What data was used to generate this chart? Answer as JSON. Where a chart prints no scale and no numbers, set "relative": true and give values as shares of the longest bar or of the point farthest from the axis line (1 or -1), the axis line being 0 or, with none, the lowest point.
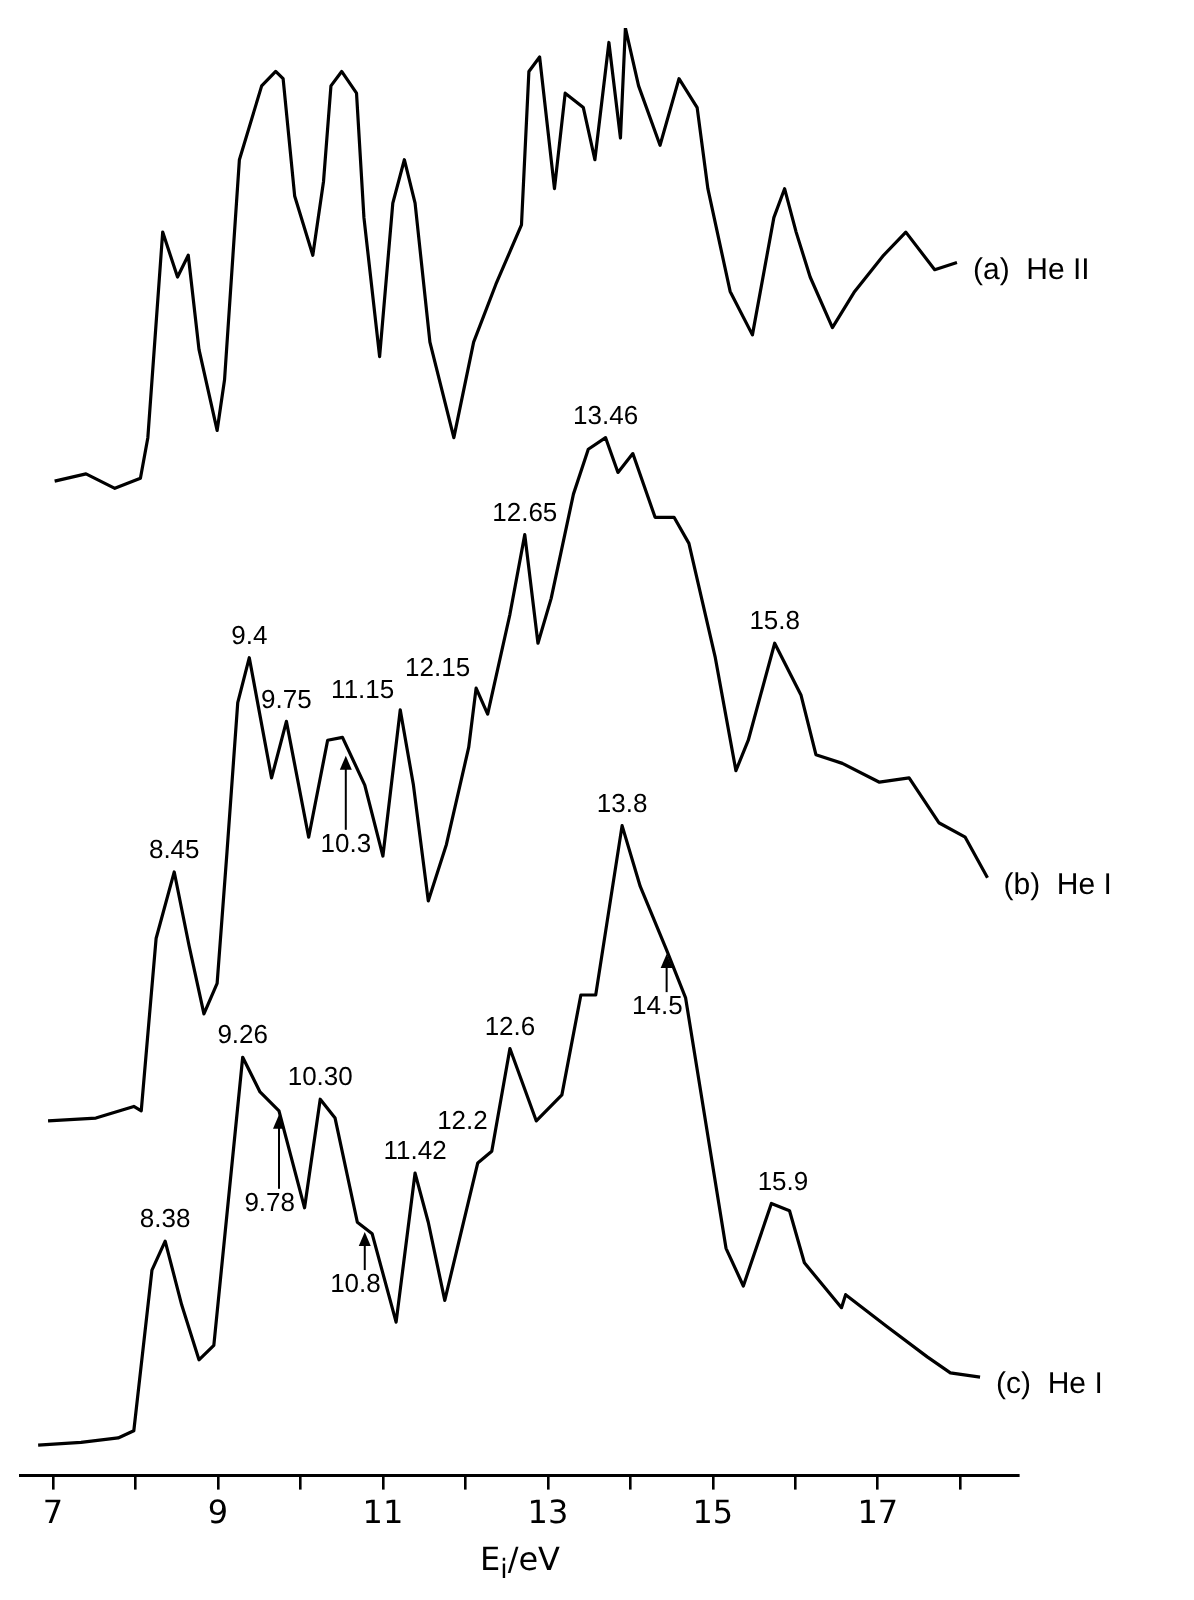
{
  "chart_data": {
    "type": "line",
    "relative": true,
    "xlabel": "E$_{i}$/eV",
    "xlim": [
      6.6,
      18.7
    ],
    "xticks": [
      7,
      {
        "value": 8,
        "label": null
      },
      9,
      {
        "value": 10,
        "label": null
      },
      11,
      {
        "value": 12,
        "label": null
      },
      13,
      {
        "value": 14,
        "label": null
      },
      15,
      {
        "value": 16,
        "label": null
      },
      17,
      {
        "value": 18,
        "label": null
      }
    ],
    "grid": false,
    "legend": false,
    "marker": "none",
    "line_style": "solid",
    "series": [
      {
        "name": "(a)  He II",
        "color": "#000000",
        "x": [
          7.02,
          7.4,
          7.75,
          8.06,
          8.15,
          8.33,
          8.51,
          8.64,
          8.77,
          8.99,
          9.08,
          9.26,
          9.53,
          9.7,
          9.79,
          9.93,
          10.15,
          10.28,
          10.37,
          10.5,
          10.68,
          10.77,
          10.96,
          11.12,
          11.26,
          11.39,
          11.57,
          11.86,
          12.1,
          12.37,
          12.68,
          12.77,
          12.9,
          13.08,
          13.21,
          13.43,
          13.57,
          13.74,
          13.88,
          13.94,
          14.1,
          14.36,
          14.59,
          14.81,
          14.94,
          15.21,
          15.48,
          15.74,
          15.87,
          16.01,
          16.18,
          16.45,
          16.72,
          17.07,
          17.34,
          17.69,
          17.96
        ],
        "values": [
          0.687,
          0.692,
          0.682,
          0.689,
          0.717,
          0.859,
          0.828,
          0.843,
          0.778,
          0.722,
          0.757,
          0.909,
          0.96,
          0.97,
          0.965,
          0.884,
          0.843,
          0.894,
          0.96,
          0.97,
          0.955,
          0.869,
          0.773,
          0.879,
          0.909,
          0.879,
          0.783,
          0.717,
          0.783,
          0.823,
          0.864,
          0.97,
          0.98,
          0.889,
          0.955,
          0.945,
          0.909,
          0.99,
          0.924,
          1.0,
          0.96,
          0.919,
          0.965,
          0.945,
          0.889,
          0.818,
          0.788,
          0.869,
          0.889,
          0.859,
          0.828,
          0.793,
          0.818,
          0.843,
          0.859,
          0.833,
          0.838
        ]
      },
      {
        "name": "(b)  He I",
        "color": "#000000",
        "x": [
          6.94,
          7.52,
          7.98,
          8.07,
          8.25,
          8.47,
          8.65,
          8.83,
          8.99,
          9.11,
          9.24,
          9.38,
          9.65,
          9.83,
          10.1,
          10.33,
          10.51,
          10.78,
          11.0,
          11.21,
          11.37,
          11.55,
          11.77,
          12.04,
          12.13,
          12.27,
          12.54,
          12.72,
          12.88,
          13.04,
          13.31,
          13.49,
          13.7,
          13.85,
          14.03,
          14.3,
          14.53,
          14.71,
          15.03,
          15.28,
          15.43,
          15.75,
          16.07,
          16.25,
          16.57,
          17.02,
          17.38,
          17.74,
          18.06,
          18.33
        ],
        "values": [
          0.245,
          0.247,
          0.255,
          0.252,
          0.371,
          0.417,
          0.366,
          0.319,
          0.34,
          0.431,
          0.534,
          0.565,
          0.482,
          0.521,
          0.441,
          0.508,
          0.51,
          0.477,
          0.428,
          0.529,
          0.477,
          0.397,
          0.436,
          0.503,
          0.544,
          0.526,
          0.595,
          0.65,
          0.575,
          0.606,
          0.678,
          0.709,
          0.717,
          0.693,
          0.706,
          0.662,
          0.662,
          0.644,
          0.565,
          0.487,
          0.508,
          0.575,
          0.539,
          0.498,
          0.492,
          0.479,
          0.482,
          0.451,
          0.441,
          0.413
        ]
      },
      {
        "name": "(c)  He I",
        "color": "#000000",
        "x": [
          6.82,
          7.34,
          7.79,
          7.98,
          8.2,
          8.36,
          8.56,
          8.77,
          8.95,
          9.3,
          9.51,
          9.74,
          10.05,
          10.24,
          10.42,
          10.69,
          10.87,
          11.16,
          11.39,
          11.55,
          11.75,
          12.15,
          12.32,
          12.54,
          12.86,
          13.17,
          13.4,
          13.58,
          13.9,
          14.12,
          14.44,
          14.67,
          15.16,
          15.37,
          15.71,
          15.93,
          16.11,
          16.56,
          16.61,
          17.11,
          17.6,
          17.88,
          18.24
        ],
        "values": [
          0.021,
          0.023,
          0.026,
          0.031,
          0.142,
          0.162,
          0.118,
          0.08,
          0.09,
          0.289,
          0.265,
          0.252,
          0.185,
          0.26,
          0.247,
          0.175,
          0.167,
          0.106,
          0.209,
          0.175,
          0.121,
          0.216,
          0.224,
          0.295,
          0.245,
          0.263,
          0.332,
          0.332,
          0.449,
          0.407,
          0.363,
          0.33,
          0.157,
          0.131,
          0.188,
          0.183,
          0.147,
          0.116,
          0.125,
          0.103,
          0.082,
          0.071,
          0.068
        ]
      }
    ],
    "annotations": [
      {
        "text": "13.46",
        "x": 13.7,
        "y": 0.717
      },
      {
        "text": "12.65",
        "x": 12.72,
        "y": 0.65
      },
      {
        "text": "12.15",
        "x": 12.13,
        "y": 0.544
      },
      {
        "text": "9.4",
        "x": 9.38,
        "y": 0.565
      },
      {
        "text": "9.75",
        "x": 9.83,
        "y": 0.521
      },
      {
        "text": "11.15",
        "x": 11.21,
        "y": 0.529
      },
      {
        "text": "15.8",
        "x": 15.75,
        "y": 0.575
      },
      {
        "text": "8.45",
        "x": 8.47,
        "y": 0.417
      },
      {
        "text": "10.3",
        "x": 10.55,
        "y": 0.5
      },
      {
        "text": "13.8",
        "x": 13.9,
        "y": 0.449
      },
      {
        "text": "14.5",
        "x": 14.44,
        "y": 0.363
      },
      {
        "text": "9.26",
        "x": 9.3,
        "y": 0.289
      },
      {
        "text": "10.30",
        "x": 10.24,
        "y": 0.26
      },
      {
        "text": "12.6",
        "x": 12.54,
        "y": 0.295
      },
      {
        "text": "11.42",
        "x": 11.39,
        "y": 0.209
      },
      {
        "text": "12.2",
        "x": 12.15,
        "y": 0.216
      },
      {
        "text": "8.38",
        "x": 8.36,
        "y": 0.162
      },
      {
        "text": "9.78",
        "x": 9.74,
        "y": 0.252
      },
      {
        "text": "10.8",
        "x": 10.78,
        "y": 0.171
      },
      {
        "text": "15.9",
        "x": 15.85,
        "y": 0.188
      }
    ]
  }
}
